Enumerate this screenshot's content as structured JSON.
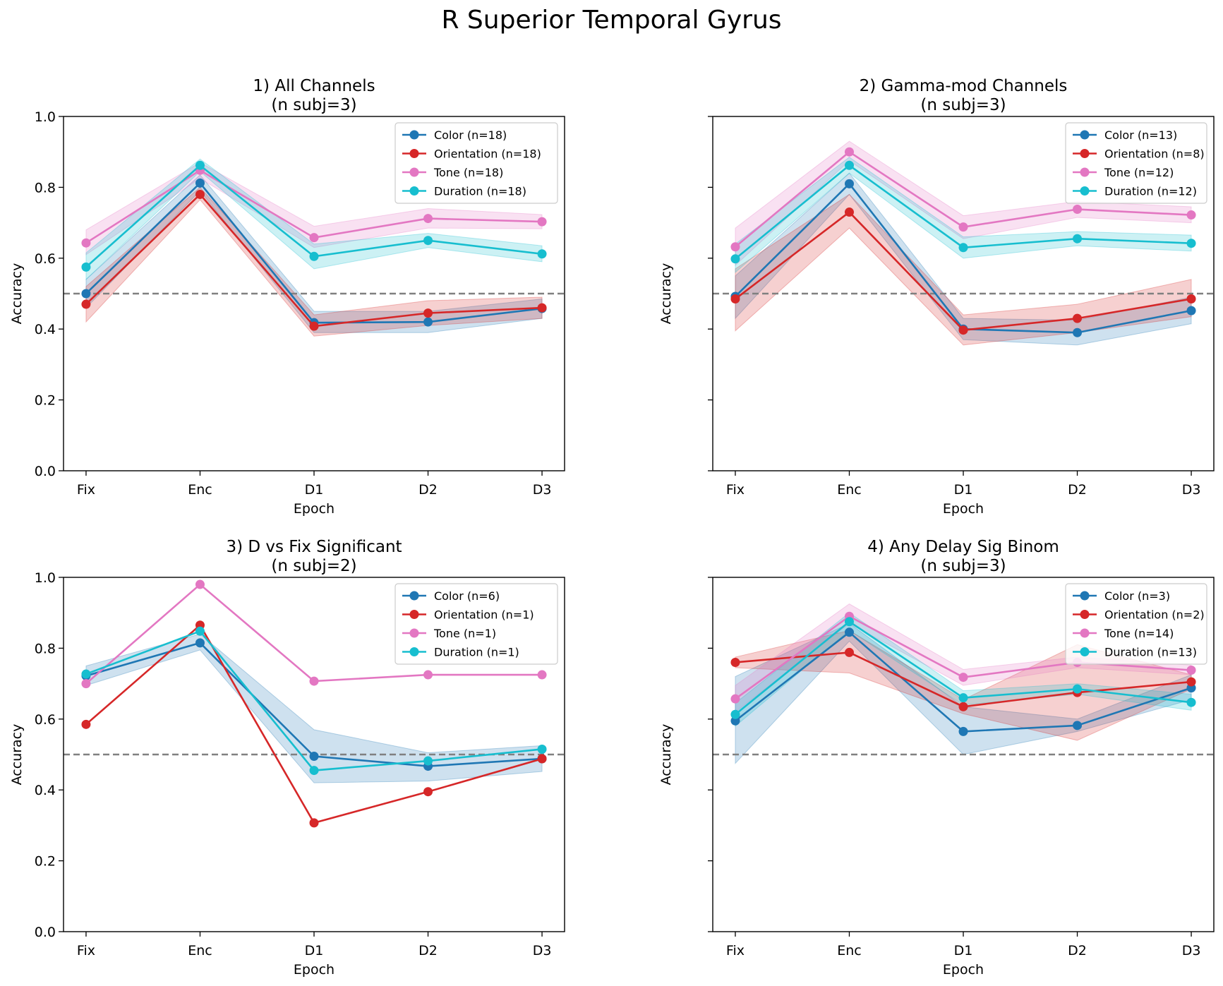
{
  "figure": {
    "title": "R Superior Temporal Gyrus"
  },
  "colors": {
    "Color": "#1f77b4",
    "Orientation": "#d62728",
    "Tone": "#e377c2",
    "Duration": "#17becf",
    "chance": "#808080"
  },
  "chart_data": [
    {
      "type": "line",
      "title_line1": "1) All Channels",
      "title_line2": "(n subj=3)",
      "xlabel": "Epoch",
      "ylabel": "Accuracy",
      "categories": [
        "Fix",
        "Enc",
        "D1",
        "D2",
        "D3"
      ],
      "ylim": [
        0,
        1
      ],
      "yticks": [
        "0.0",
        "0.2",
        "0.4",
        "0.6",
        "0.8",
        "1.0"
      ],
      "show_ytick_labels": true,
      "chance_level": 0.5,
      "legend_position": "top-right",
      "series": [
        {
          "name": "Color (n=18)",
          "key": "Color",
          "values": [
            0.5,
            0.812,
            0.418,
            0.42,
            0.458
          ],
          "lower": [
            0.46,
            0.79,
            0.39,
            0.39,
            0.43
          ],
          "upper": [
            0.54,
            0.835,
            0.45,
            0.45,
            0.485
          ]
        },
        {
          "name": "Orientation (n=18)",
          "key": "Orientation",
          "values": [
            0.47,
            0.78,
            0.408,
            0.445,
            0.46
          ],
          "lower": [
            0.42,
            0.765,
            0.38,
            0.41,
            0.43
          ],
          "upper": [
            0.52,
            0.8,
            0.44,
            0.48,
            0.49
          ]
        },
        {
          "name": "Tone (n=18)",
          "key": "Tone",
          "values": [
            0.643,
            0.848,
            0.658,
            0.712,
            0.703
          ],
          "lower": [
            0.61,
            0.825,
            0.63,
            0.685,
            0.683
          ],
          "upper": [
            0.68,
            0.87,
            0.69,
            0.74,
            0.723
          ]
        },
        {
          "name": "Duration (n=18)",
          "key": "Duration",
          "values": [
            0.575,
            0.862,
            0.605,
            0.65,
            0.612
          ],
          "lower": [
            0.54,
            0.845,
            0.57,
            0.63,
            0.59
          ],
          "upper": [
            0.615,
            0.88,
            0.64,
            0.67,
            0.635
          ]
        }
      ]
    },
    {
      "type": "line",
      "title_line1": "2) Gamma-mod Channels",
      "title_line2": "(n subj=3)",
      "xlabel": "Epoch",
      "ylabel": "Accuracy",
      "categories": [
        "Fix",
        "Enc",
        "D1",
        "D2",
        "D3"
      ],
      "ylim": [
        0,
        1
      ],
      "yticks": [
        "0.0",
        "0.2",
        "0.4",
        "0.6",
        "0.8",
        "1.0"
      ],
      "show_ytick_labels": false,
      "chance_level": 0.5,
      "legend_position": "top-right",
      "series": [
        {
          "name": "Color (n=13)",
          "key": "Color",
          "values": [
            0.492,
            0.81,
            0.4,
            0.39,
            0.452
          ],
          "lower": [
            0.43,
            0.78,
            0.37,
            0.355,
            0.415
          ],
          "upper": [
            0.55,
            0.84,
            0.43,
            0.425,
            0.49
          ]
        },
        {
          "name": "Orientation (n=8)",
          "key": "Orientation",
          "values": [
            0.485,
            0.73,
            0.397,
            0.43,
            0.485
          ],
          "lower": [
            0.395,
            0.685,
            0.355,
            0.39,
            0.435
          ],
          "upper": [
            0.57,
            0.78,
            0.44,
            0.47,
            0.54
          ]
        },
        {
          "name": "Tone (n=12)",
          "key": "Tone",
          "values": [
            0.632,
            0.9,
            0.688,
            0.738,
            0.722
          ],
          "lower": [
            0.58,
            0.875,
            0.655,
            0.715,
            0.7
          ],
          "upper": [
            0.685,
            0.93,
            0.72,
            0.76,
            0.745
          ]
        },
        {
          "name": "Duration (n=12)",
          "key": "Duration",
          "values": [
            0.598,
            0.862,
            0.63,
            0.655,
            0.642
          ],
          "lower": [
            0.56,
            0.84,
            0.6,
            0.635,
            0.62
          ],
          "upper": [
            0.64,
            0.885,
            0.66,
            0.675,
            0.665
          ]
        }
      ]
    },
    {
      "type": "line",
      "title_line1": "3) D vs Fix Significant",
      "title_line2": "(n subj=2)",
      "xlabel": "Epoch",
      "ylabel": "Accuracy",
      "categories": [
        "Fix",
        "Enc",
        "D1",
        "D2",
        "D3"
      ],
      "ylim": [
        0,
        1
      ],
      "yticks": [
        "0.0",
        "0.2",
        "0.4",
        "0.6",
        "0.8",
        "1.0"
      ],
      "show_ytick_labels": true,
      "chance_level": 0.5,
      "legend_position": "top-right",
      "series": [
        {
          "name": "Color (n=6)",
          "key": "Color",
          "values": [
            0.722,
            0.815,
            0.495,
            0.467,
            0.488
          ],
          "lower": [
            0.695,
            0.795,
            0.42,
            0.425,
            0.452
          ],
          "upper": [
            0.75,
            0.84,
            0.57,
            0.505,
            0.525
          ]
        },
        {
          "name": "Orientation (n=1)",
          "key": "Orientation",
          "values": [
            0.585,
            0.865,
            0.307,
            0.395,
            0.488
          ]
        },
        {
          "name": "Tone (n=1)",
          "key": "Tone",
          "values": [
            0.7,
            0.98,
            0.707,
            0.725,
            0.725
          ]
        },
        {
          "name": "Duration (n=1)",
          "key": "Duration",
          "values": [
            0.727,
            0.848,
            0.455,
            0.482,
            0.515
          ]
        }
      ]
    },
    {
      "type": "line",
      "title_line1": "4) Any Delay Sig Binom",
      "title_line2": "(n subj=3)",
      "xlabel": "Epoch",
      "ylabel": "Accuracy",
      "categories": [
        "Fix",
        "Enc",
        "D1",
        "D2",
        "D3"
      ],
      "ylim": [
        0,
        1
      ],
      "yticks": [
        "0.0",
        "0.2",
        "0.4",
        "0.6",
        "0.8",
        "1.0"
      ],
      "show_ytick_labels": false,
      "chance_level": 0.5,
      "legend_position": "top-right",
      "series": [
        {
          "name": "Color (n=3)",
          "key": "Color",
          "values": [
            0.595,
            0.845,
            0.565,
            0.582,
            0.688
          ],
          "lower": [
            0.475,
            0.82,
            0.5,
            0.565,
            0.655
          ],
          "upper": [
            0.72,
            0.87,
            0.635,
            0.6,
            0.725
          ]
        },
        {
          "name": "Orientation (n=2)",
          "key": "Orientation",
          "values": [
            0.76,
            0.788,
            0.635,
            0.675,
            0.705
          ],
          "lower": [
            0.745,
            0.73,
            0.615,
            0.54,
            0.685
          ],
          "upper": [
            0.775,
            0.85,
            0.655,
            0.81,
            0.725
          ]
        },
        {
          "name": "Tone (n=14)",
          "key": "Tone",
          "values": [
            0.657,
            0.89,
            0.718,
            0.76,
            0.738
          ],
          "lower": [
            0.62,
            0.87,
            0.695,
            0.745,
            0.725
          ],
          "upper": [
            0.695,
            0.925,
            0.74,
            0.775,
            0.752
          ]
        },
        {
          "name": "Duration (n=13)",
          "key": "Duration",
          "values": [
            0.613,
            0.875,
            0.66,
            0.685,
            0.647
          ],
          "lower": [
            0.58,
            0.85,
            0.64,
            0.67,
            0.625
          ],
          "upper": [
            0.645,
            0.9,
            0.68,
            0.7,
            0.67
          ]
        }
      ]
    }
  ]
}
